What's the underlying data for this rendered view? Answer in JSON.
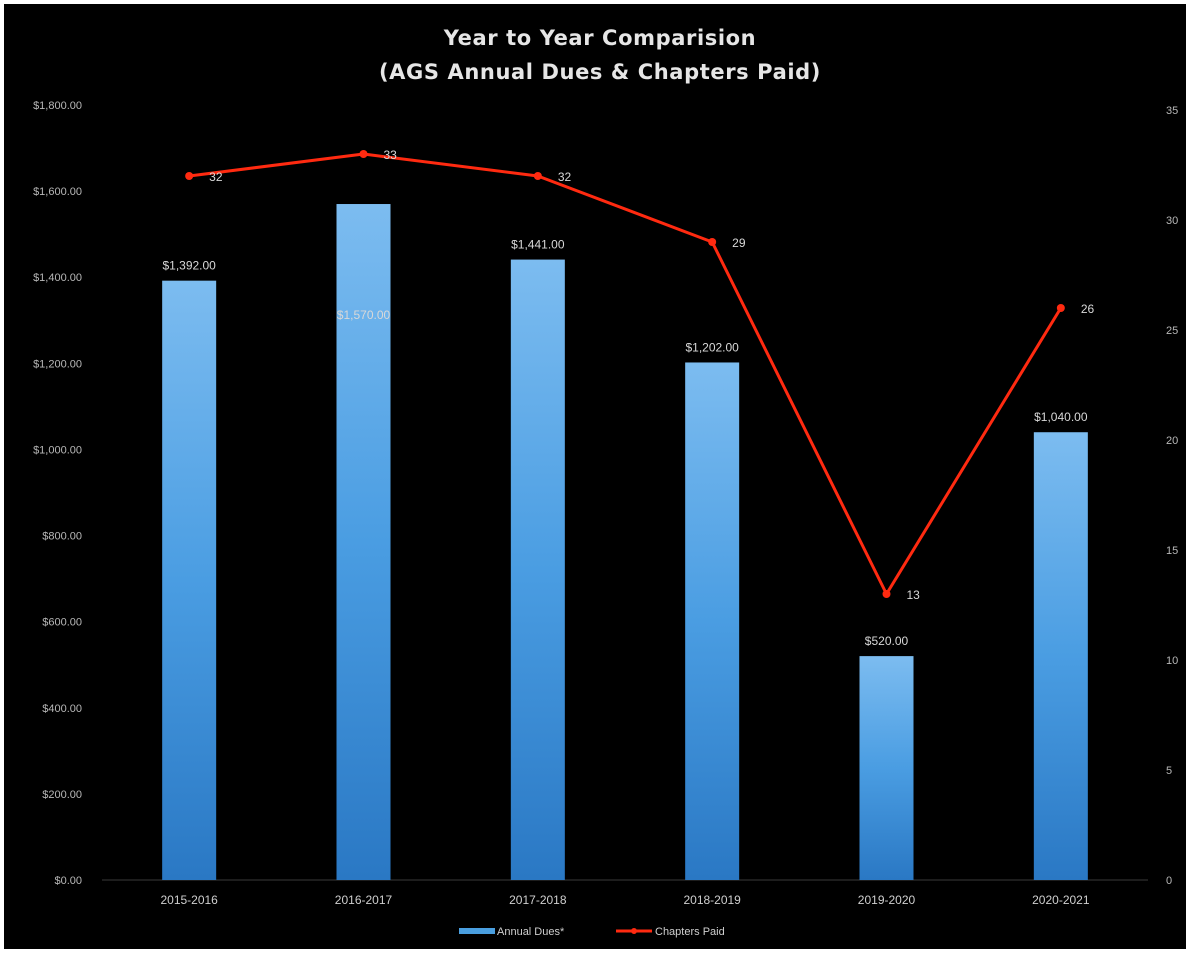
{
  "chart_data": {
    "type": "bar",
    "title": [
      "Year to Year Comparision",
      "(AGS Annual Dues & Chapters Paid)"
    ],
    "categories": [
      "2015-2016",
      "2016-2017",
      "2017-2018",
      "2018-2019",
      "2019-2020",
      "2020-2021"
    ],
    "series": [
      {
        "name": "Annual Dues*",
        "type": "bar",
        "axis": "left",
        "values": [
          1392,
          1570,
          1441,
          1202,
          520,
          1040
        ],
        "labels": [
          "$1,392.00",
          "$1,570.00",
          "$1,441.00",
          "$1,202.00",
          "$520.00",
          "$1,040.00"
        ],
        "color": "#4a9fe0"
      },
      {
        "name": "Chapters Paid",
        "type": "line",
        "axis": "right",
        "values": [
          32,
          33,
          32,
          29,
          13,
          26
        ],
        "labels": [
          "32",
          "33",
          "32",
          "29",
          "13",
          "26"
        ],
        "color": "#ff2a10"
      }
    ],
    "y_left": {
      "min": 0,
      "max": 1800,
      "ticks": [
        0,
        200,
        400,
        600,
        800,
        1000,
        1200,
        1400,
        1600,
        1800
      ],
      "tick_labels": [
        "$0.00",
        "$200.00",
        "$400.00",
        "$600.00",
        "$800.00",
        "$1,000.00",
        "$1,200.00",
        "$1,400.00",
        "$1,600.00",
        "$1,800.00"
      ]
    },
    "y_right": {
      "min": 0,
      "max": 35,
      "ticks": [
        0,
        5,
        10,
        15,
        20,
        25,
        30,
        35
      ],
      "tick_labels": [
        "0",
        "5",
        "10",
        "15",
        "20",
        "25",
        "30",
        "35"
      ]
    },
    "legend": {
      "position": "bottom",
      "entries": [
        "Annual Dues*",
        "Chapters Paid"
      ]
    },
    "grid": false,
    "background": "#000000"
  }
}
